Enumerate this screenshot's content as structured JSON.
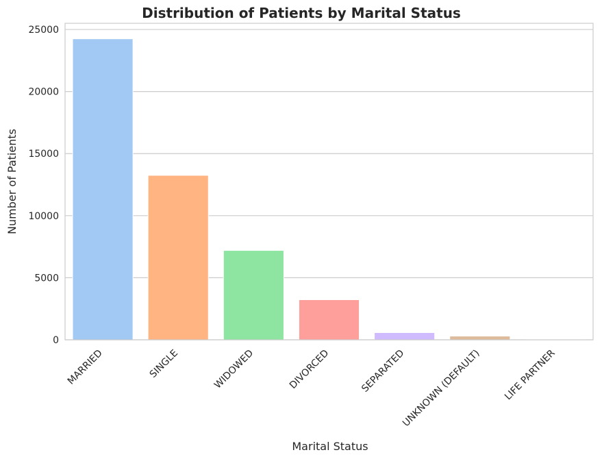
{
  "chart_data": {
    "type": "bar",
    "title": "Distribution of Patients by Marital Status",
    "xlabel": "Marital Status",
    "ylabel": "Number of Patients",
    "categories": [
      "MARRIED",
      "SINGLE",
      "WIDOWED",
      "DIVORCED",
      "SEPARATED",
      "UNKNOWN (DEFAULT)",
      "LIFE PARTNER"
    ],
    "values": [
      24250,
      13250,
      7200,
      3230,
      580,
      300,
      15
    ],
    "colors": [
      "#a1c9f4",
      "#ffb482",
      "#8de5a1",
      "#ff9f9b",
      "#d0bbff",
      "#debb9b",
      "#fab0e4"
    ],
    "ylim": [
      0,
      25500
    ],
    "yticks": [
      0,
      5000,
      10000,
      15000,
      20000,
      25000
    ],
    "grid": true,
    "gridColor": "#cccccc",
    "spineColor": "#cccccc",
    "style": "seaborn-whitegrid"
  }
}
